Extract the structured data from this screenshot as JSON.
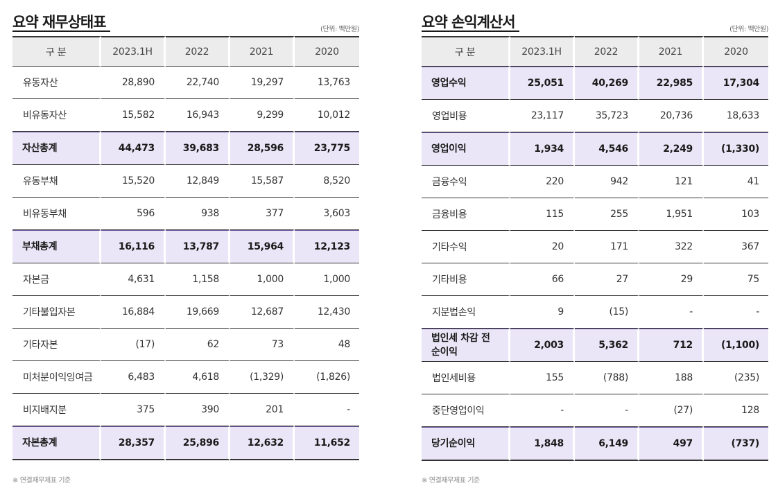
{
  "balance_sheet": {
    "title": "요약 재무상태표",
    "unit": "(단위: 백만원)",
    "headers": [
      "구 분",
      "2023.1H",
      "2022",
      "2021",
      "2020"
    ],
    "rows": [
      {
        "label": "유동자산",
        "values": [
          "28,890",
          "22,740",
          "19,297",
          "13,763"
        ],
        "highlight": false
      },
      {
        "label": "비유동자산",
        "values": [
          "15,582",
          "16,943",
          "9,299",
          "10,012"
        ],
        "highlight": false
      },
      {
        "label": "자산총계",
        "values": [
          "44,473",
          "39,683",
          "28,596",
          "23,775"
        ],
        "highlight": true
      },
      {
        "label": "유동부채",
        "values": [
          "15,520",
          "12,849",
          "15,587",
          "8,520"
        ],
        "highlight": false
      },
      {
        "label": "비유동부채",
        "values": [
          "596",
          "938",
          "377",
          "3,603"
        ],
        "highlight": false
      },
      {
        "label": "부채총계",
        "values": [
          "16,116",
          "13,787",
          "15,964",
          "12,123"
        ],
        "highlight": true
      },
      {
        "label": "자본금",
        "values": [
          "4,631",
          "1,158",
          "1,000",
          "1,000"
        ],
        "highlight": false
      },
      {
        "label": "기타불입자본",
        "values": [
          "16,884",
          "19,669",
          "12,687",
          "12,430"
        ],
        "highlight": false
      },
      {
        "label": "기타자본",
        "values": [
          "(17)",
          "62",
          "73",
          "48"
        ],
        "highlight": false
      },
      {
        "label": "미처분이익잉여금",
        "values": [
          "6,483",
          "4,618",
          "(1,329)",
          "(1,826)"
        ],
        "highlight": false
      },
      {
        "label": "비지배지분",
        "values": [
          "375",
          "390",
          "201",
          "-"
        ],
        "highlight": false
      },
      {
        "label": "자본총계",
        "values": [
          "28,357",
          "25,896",
          "12,632",
          "11,652"
        ],
        "highlight": true
      }
    ],
    "footnote": "※ 연결재무제표 기준"
  },
  "income_statement": {
    "title": "요약 손익계산서",
    "unit": "(단위: 백만원)",
    "headers": [
      "구 분",
      "2023.1H",
      "2022",
      "2021",
      "2020"
    ],
    "rows": [
      {
        "label": "영업수익",
        "values": [
          "25,051",
          "40,269",
          "22,985",
          "17,304"
        ],
        "highlight": true
      },
      {
        "label": "영업비용",
        "values": [
          "23,117",
          "35,723",
          "20,736",
          "18,633"
        ],
        "highlight": false
      },
      {
        "label": "영업이익",
        "values": [
          "1,934",
          "4,546",
          "2,249",
          "(1,330)"
        ],
        "highlight": true
      },
      {
        "label": "금융수익",
        "values": [
          "220",
          "942",
          "121",
          "41"
        ],
        "highlight": false
      },
      {
        "label": "금융비용",
        "values": [
          "115",
          "255",
          "1,951",
          "103"
        ],
        "highlight": false
      },
      {
        "label": "기타수익",
        "values": [
          "20",
          "171",
          "322",
          "367"
        ],
        "highlight": false
      },
      {
        "label": "기타비용",
        "values": [
          "66",
          "27",
          "29",
          "75"
        ],
        "highlight": false
      },
      {
        "label": "지분법손익",
        "values": [
          "9",
          "(15)",
          "-",
          "-"
        ],
        "highlight": false
      },
      {
        "label": "법인세 차감 전\n순이익",
        "values": [
          "2,003",
          "5,362",
          "712",
          "(1,100)"
        ],
        "highlight": true
      },
      {
        "label": "법인세비용",
        "values": [
          "155",
          "(788)",
          "188",
          "(235)"
        ],
        "highlight": false
      },
      {
        "label": "중단영업이익",
        "values": [
          "-",
          "-",
          "(27)",
          "128"
        ],
        "highlight": false
      },
      {
        "label": "당기순이익",
        "values": [
          "1,848",
          "6,149",
          "497",
          "(737)"
        ],
        "highlight": true
      }
    ],
    "footnote": "※ 연결재무제표 기준"
  }
}
